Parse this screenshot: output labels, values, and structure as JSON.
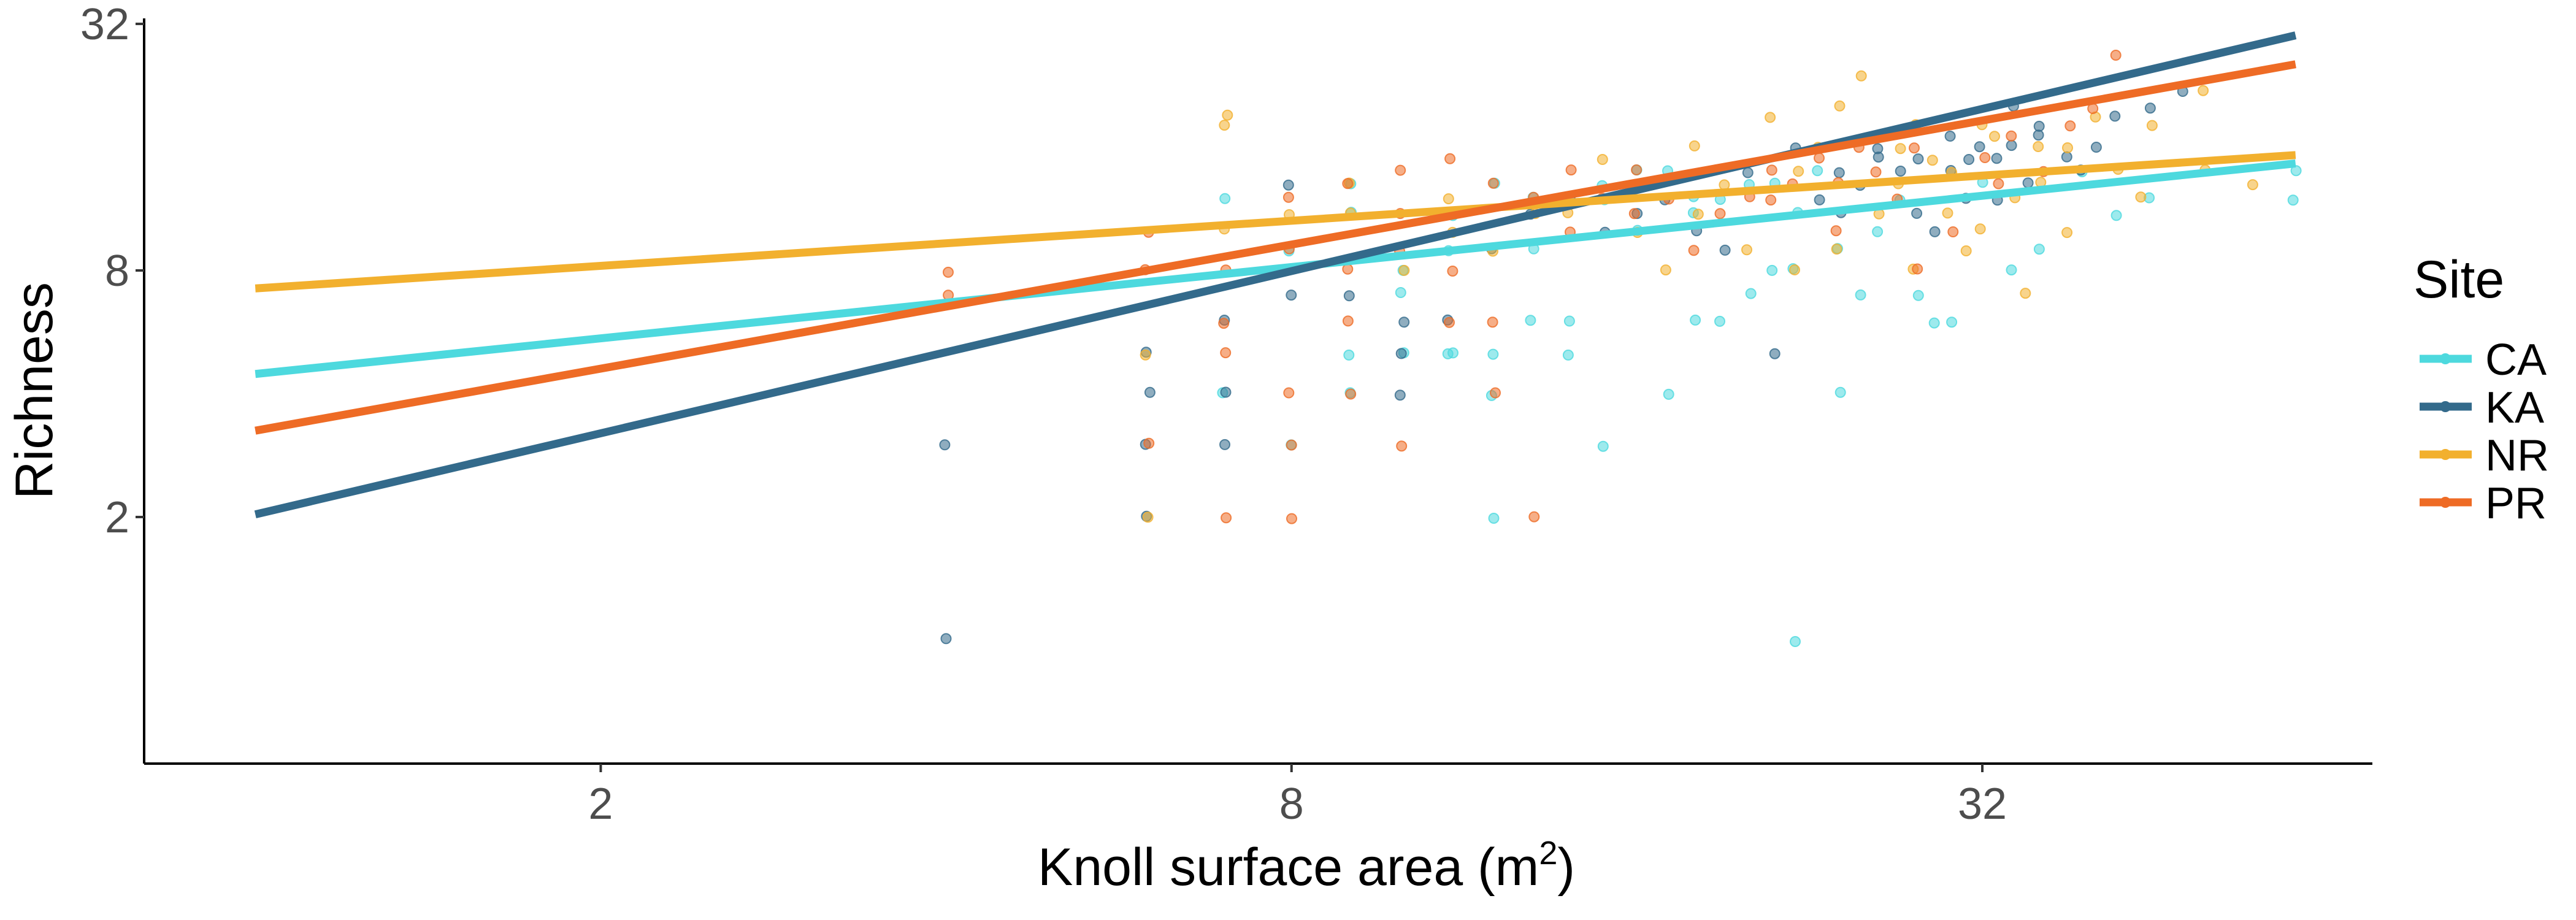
{
  "chart_data": {
    "type": "scatter",
    "title": "",
    "xlabel": "Knoll surface area  (m",
    "xlabel_superscript": "2",
    "xlabel_suffix": ")",
    "ylabel": "Richness",
    "x_scale": "log2",
    "y_scale": "log2",
    "xlim": [
      0.8,
      70
    ],
    "ylim": [
      0.5,
      33
    ],
    "x_ticks": [
      2,
      8,
      32
    ],
    "x_tick_labels": [
      "2",
      "8",
      "32"
    ],
    "y_ticks": [
      2,
      8,
      32
    ],
    "y_tick_labels": [
      "2",
      "8",
      "32"
    ],
    "grid": false,
    "legend": {
      "title": "Site",
      "position": "right"
    },
    "series": [
      {
        "name": "CA",
        "color": "#4dd9de",
        "fit_line": [
          [
            1.0,
            4.47
          ],
          [
            60,
            14.6
          ]
        ],
        "points": [
          [
            7,
            12
          ],
          [
            7,
            4
          ],
          [
            8,
            3
          ],
          [
            8,
            9
          ],
          [
            9,
            13
          ],
          [
            9,
            5
          ],
          [
            9,
            11
          ],
          [
            9,
            4
          ],
          [
            10,
            5
          ],
          [
            10,
            8
          ],
          [
            10,
            7
          ],
          [
            11,
            11
          ],
          [
            11,
            5
          ],
          [
            11,
            5
          ],
          [
            12,
            5
          ],
          [
            12,
            13
          ],
          [
            12,
            4
          ],
          [
            13,
            12
          ],
          [
            13,
            9
          ],
          [
            14,
            5
          ],
          [
            14,
            6
          ],
          [
            15,
            13
          ],
          [
            15,
            3
          ],
          [
            16,
            14
          ],
          [
            16,
            10
          ],
          [
            17,
            4
          ],
          [
            18,
            11
          ],
          [
            18,
            6
          ],
          [
            19,
            6
          ],
          [
            20,
            13
          ],
          [
            20,
            7
          ],
          [
            21,
            8
          ],
          [
            22,
            1
          ],
          [
            23,
            14
          ],
          [
            24,
            9
          ],
          [
            24,
            4
          ],
          [
            26,
            10
          ],
          [
            27,
            12
          ],
          [
            28,
            7
          ],
          [
            30,
            6
          ],
          [
            32,
            13
          ],
          [
            34,
            8
          ],
          [
            36,
            9
          ],
          [
            39,
            14
          ],
          [
            42,
            11
          ],
          [
            45,
            12
          ],
          [
            60,
            14
          ],
          [
            60,
            12
          ],
          [
            15,
            12
          ],
          [
            17,
            14
          ],
          [
            19,
            12
          ],
          [
            21,
            13
          ],
          [
            13,
            6
          ],
          [
            25,
            7
          ],
          [
            29,
            6
          ],
          [
            11,
            9
          ],
          [
            18,
            12
          ],
          [
            22,
            8
          ],
          [
            12,
            2
          ],
          [
            22,
            11
          ]
        ]
      },
      {
        "name": "KA",
        "color": "#336a8b",
        "fit_line": [
          [
            1.0,
            2.03
          ],
          [
            60,
            30.0
          ]
        ],
        "points": [
          [
            4,
            1
          ],
          [
            4,
            3
          ],
          [
            6,
            3
          ],
          [
            6,
            2
          ],
          [
            6,
            4
          ],
          [
            6,
            5
          ],
          [
            7,
            4
          ],
          [
            7,
            6
          ],
          [
            7,
            3
          ],
          [
            8,
            13
          ],
          [
            8,
            7
          ],
          [
            9,
            7
          ],
          [
            10,
            6
          ],
          [
            10,
            5
          ],
          [
            10,
            4
          ],
          [
            11,
            6
          ],
          [
            12,
            9
          ],
          [
            13,
            11
          ],
          [
            14,
            12
          ],
          [
            15,
            10
          ],
          [
            16,
            11
          ],
          [
            17,
            12
          ],
          [
            18,
            10
          ],
          [
            19,
            9
          ],
          [
            20,
            14
          ],
          [
            21,
            5
          ],
          [
            22,
            16
          ],
          [
            23,
            12
          ],
          [
            24,
            14
          ],
          [
            25,
            13
          ],
          [
            26,
            15
          ],
          [
            27,
            14
          ],
          [
            28,
            11
          ],
          [
            29,
            10
          ],
          [
            30,
            17
          ],
          [
            31,
            15
          ],
          [
            32,
            16
          ],
          [
            33,
            12
          ],
          [
            34,
            20
          ],
          [
            35,
            13
          ],
          [
            36,
            18
          ],
          [
            38,
            15
          ],
          [
            40,
            16
          ],
          [
            42,
            19
          ],
          [
            45,
            20
          ],
          [
            48,
            22
          ],
          [
            26,
            16
          ],
          [
            30,
            14
          ],
          [
            24,
            11
          ],
          [
            33,
            15
          ],
          [
            28,
            15
          ],
          [
            36,
            17
          ],
          [
            39,
            14
          ],
          [
            31,
            12
          ],
          [
            34,
            16
          ]
        ]
      },
      {
        "name": "NR",
        "color": "#f2b02e",
        "fit_line": [
          [
            1.0,
            7.23
          ],
          [
            60,
            15.3
          ]
        ],
        "points": [
          [
            6,
            5
          ],
          [
            6,
            2
          ],
          [
            7,
            19
          ],
          [
            7,
            18
          ],
          [
            7,
            10
          ],
          [
            8,
            11
          ],
          [
            8,
            8
          ],
          [
            9,
            11
          ],
          [
            9,
            13
          ],
          [
            10,
            8
          ],
          [
            11,
            12
          ],
          [
            11,
            10
          ],
          [
            12,
            9
          ],
          [
            13,
            11
          ],
          [
            14,
            11
          ],
          [
            15,
            15
          ],
          [
            16,
            10
          ],
          [
            17,
            8
          ],
          [
            18,
            16
          ],
          [
            18,
            11
          ],
          [
            19,
            13
          ],
          [
            20,
            9
          ],
          [
            21,
            19
          ],
          [
            22,
            14
          ],
          [
            22,
            8
          ],
          [
            23,
            16
          ],
          [
            24,
            9
          ],
          [
            25,
            24
          ],
          [
            26,
            11
          ],
          [
            27,
            13
          ],
          [
            28,
            8
          ],
          [
            29,
            15
          ],
          [
            30,
            14
          ],
          [
            31,
            9
          ],
          [
            32,
            18
          ],
          [
            34,
            12
          ],
          [
            35,
            7
          ],
          [
            36,
            16
          ],
          [
            38,
            10
          ],
          [
            40,
            19
          ],
          [
            42,
            14
          ],
          [
            44,
            12
          ],
          [
            45,
            18
          ],
          [
            50,
            22
          ],
          [
            50,
            14
          ],
          [
            55,
            13
          ],
          [
            28,
            18
          ],
          [
            33,
            17
          ],
          [
            36,
            13
          ],
          [
            24,
            20
          ],
          [
            30,
            11
          ],
          [
            38,
            16
          ],
          [
            27,
            16
          ],
          [
            32,
            10
          ]
        ]
      },
      {
        "name": "PR",
        "color": "#ee6b25",
        "fit_line": [
          [
            1.0,
            3.25
          ],
          [
            60,
            25.5
          ]
        ],
        "points": [
          [
            4,
            8
          ],
          [
            4,
            7
          ],
          [
            6,
            10
          ],
          [
            6,
            8
          ],
          [
            6,
            3
          ],
          [
            7,
            8
          ],
          [
            7,
            6
          ],
          [
            7,
            5
          ],
          [
            7,
            2
          ],
          [
            8,
            12
          ],
          [
            8,
            9
          ],
          [
            8,
            4
          ],
          [
            8,
            3
          ],
          [
            8,
            2
          ],
          [
            9,
            13
          ],
          [
            9,
            8
          ],
          [
            9,
            6
          ],
          [
            10,
            14
          ],
          [
            10,
            11
          ],
          [
            10,
            3
          ],
          [
            11,
            15
          ],
          [
            11,
            8
          ],
          [
            11,
            6
          ],
          [
            12,
            13
          ],
          [
            12,
            4
          ],
          [
            13,
            2
          ],
          [
            14,
            10
          ],
          [
            15,
            12
          ],
          [
            16,
            14
          ],
          [
            17,
            12
          ],
          [
            18,
            9
          ],
          [
            19,
            11
          ],
          [
            20,
            12
          ],
          [
            21,
            14
          ],
          [
            22,
            13
          ],
          [
            23,
            15
          ],
          [
            24,
            10
          ],
          [
            25,
            16
          ],
          [
            26,
            14
          ],
          [
            27,
            12
          ],
          [
            28,
            8
          ],
          [
            30,
            10
          ],
          [
            32,
            15
          ],
          [
            34,
            17
          ],
          [
            36,
            14
          ],
          [
            38,
            18
          ],
          [
            40,
            20
          ],
          [
            42,
            27
          ],
          [
            9,
            4
          ],
          [
            12,
            6
          ],
          [
            16,
            11
          ],
          [
            24,
            13
          ],
          [
            13,
            12
          ],
          [
            10,
            9
          ],
          [
            14,
            14
          ],
          [
            21,
            12
          ],
          [
            28,
            16
          ],
          [
            33,
            13
          ]
        ]
      }
    ]
  }
}
